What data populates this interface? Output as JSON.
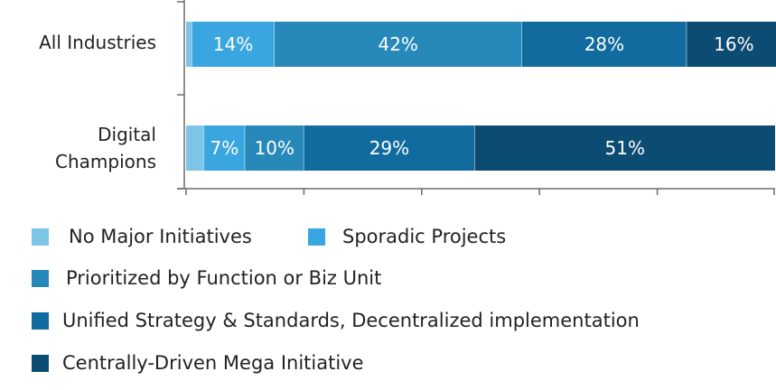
{
  "chart_data": {
    "type": "bar",
    "orientation": "horizontal",
    "stacked": true,
    "categories": [
      "All Industries",
      "Digital Champions"
    ],
    "series": [
      {
        "name": "No Major Initiatives",
        "color": "#7cc5e6",
        "values": [
          1,
          3
        ],
        "labels": [
          "",
          ""
        ]
      },
      {
        "name": "Sporadic Projects",
        "color": "#3aa6df",
        "values": [
          14,
          7
        ],
        "labels": [
          "14%",
          "7%"
        ]
      },
      {
        "name": "Prioritized by Function or Biz Unit",
        "color": "#2689b9",
        "values": [
          42,
          10
        ],
        "labels": [
          "42%",
          "10%"
        ]
      },
      {
        "name": "Unified Strategy & Standards, Decentralized implementation",
        "color": "#126b9e",
        "values": [
          28,
          29
        ],
        "labels": [
          "28%",
          "29%"
        ]
      },
      {
        "name": "Centrally-Driven Mega Initiative",
        "color": "#0d4c72",
        "values": [
          16,
          51
        ],
        "labels": [
          "16%",
          "51%"
        ]
      }
    ],
    "xlim": [
      0,
      100
    ],
    "xticks": [
      0,
      20,
      40,
      60,
      80,
      100
    ],
    "grid": false,
    "legend_position": "bottom"
  },
  "category_labels": [
    "All Industries",
    "Digital\nChampions"
  ]
}
